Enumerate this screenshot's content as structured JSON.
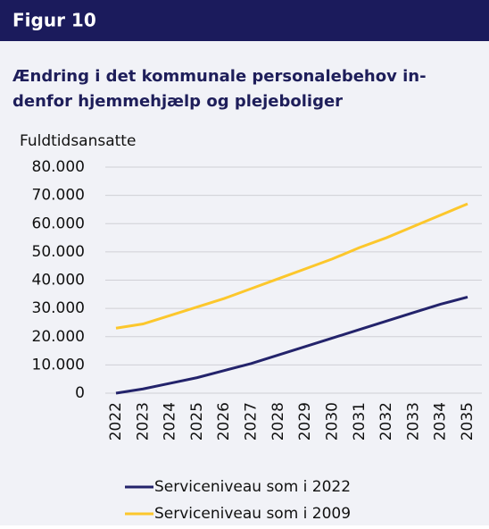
{
  "header": "Figur 10",
  "chart_data": {
    "type": "line",
    "title": [
      "Ændring i det kommunale personalebehov in-",
      "denfor hjemmehjælp og plejeboliger"
    ],
    "ylabel": "Fuldtidsansatte",
    "categories": [
      "2022",
      "2023",
      "2024",
      "2025",
      "2026",
      "2027",
      "2028",
      "2029",
      "2030",
      "2031",
      "2032",
      "2033",
      "2034",
      "2035"
    ],
    "series": [
      {
        "name": "Serviceniveau som i 2022",
        "color": "#23236b",
        "values": [
          0,
          1500,
          3500,
          5500,
          8000,
          10500,
          13500,
          16500,
          19500,
          22500,
          25500,
          28500,
          31500,
          34000
        ]
      },
      {
        "name": "Serviceniveau som i 2009",
        "color": "#fcc72c",
        "values": [
          23000,
          24500,
          27500,
          30500,
          33500,
          37000,
          40500,
          44000,
          47500,
          51500,
          55000,
          59000,
          63000,
          67000
        ]
      }
    ],
    "ylim": [
      0,
      80000
    ],
    "yticks": [
      0,
      {
        "value": 10000,
        "label": "10.000"
      },
      {
        "value": 20000,
        "label": "20.000"
      },
      {
        "value": 30000,
        "label": "30.000"
      },
      {
        "value": 40000,
        "label": "40.000"
      },
      {
        "value": 50000,
        "label": "50.000"
      },
      {
        "value": 60000,
        "label": "60.000"
      },
      {
        "value": 70000,
        "label": "70.000"
      },
      {
        "value": 80000,
        "label": "80.000"
      }
    ],
    "grid": true
  }
}
